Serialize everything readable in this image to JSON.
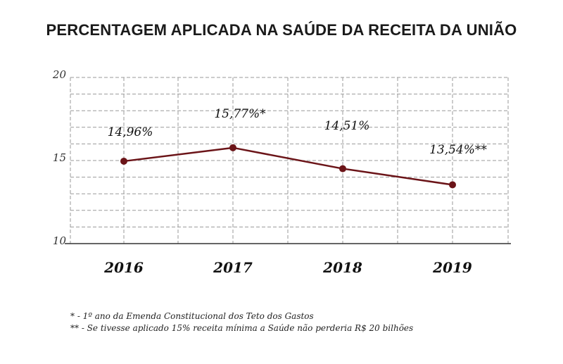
{
  "chart_data": {
    "type": "line",
    "title": "PERCENTAGEM APLICADA NA SAÚDE DA RECEITA DA UNIÃO",
    "categories": [
      "2016",
      "2017",
      "2018",
      "2019"
    ],
    "values": [
      14.96,
      15.77,
      14.51,
      13.54
    ],
    "data_labels": [
      "14,96%",
      "15,77%*",
      "14,51%",
      "13,54%**"
    ],
    "ylim": [
      10,
      20
    ],
    "y_ticks": [
      "10",
      "15",
      "20"
    ],
    "xlabel": "",
    "ylabel": "",
    "grid": true,
    "legend": "none",
    "colors": {
      "line": "#6b1418",
      "marker": "#6b1418",
      "grid": "#9a9a9a",
      "axis": "#333333"
    }
  },
  "footnotes": [
    "* - 1º ano da Emenda Constitucional dos Teto dos Gastos",
    "** - Se tivesse aplicado 15% receita mínima a Saúde não perderia R$ 20 bilhões"
  ]
}
